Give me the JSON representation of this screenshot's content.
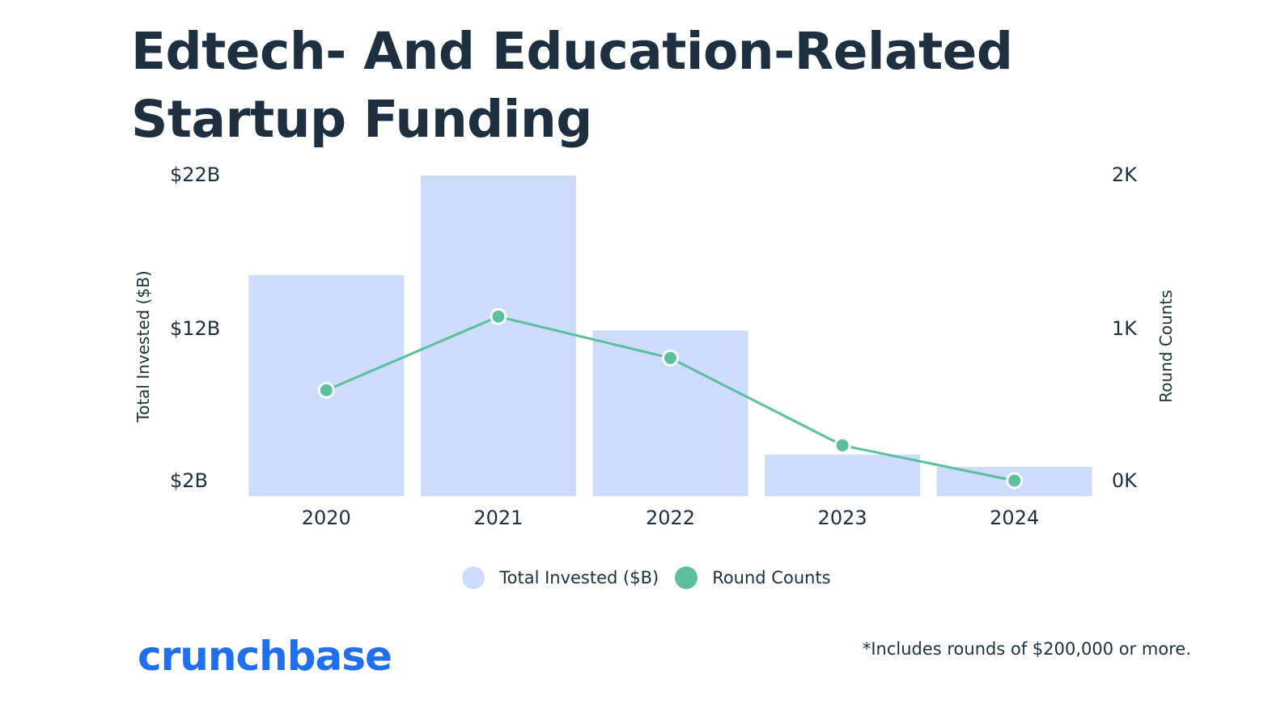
{
  "colors": {
    "bar": "#cddcfa",
    "line": "#5bbfa0",
    "text": "#1e3040",
    "logo": "#1f6ff1"
  },
  "chart_data": {
    "type": "bar",
    "title": "Edtech- And Education-Related Startup Funding",
    "categories": [
      "2020",
      "2021",
      "2022",
      "2023",
      "2024"
    ],
    "series": [
      {
        "name": "Total Invested ($B)",
        "type": "bar",
        "axis": "left",
        "values": [
          15.4,
          21.9,
          11.8,
          3.7,
          2.9
        ]
      },
      {
        "name": "Round Counts",
        "type": "line",
        "axis": "right",
        "values": [
          590,
          1070,
          800,
          230,
          0
        ]
      }
    ],
    "ylabel": "Total Invested ($B)",
    "y2label": "Round Counts",
    "ylim": [
      2,
      22
    ],
    "y2lim": [
      0,
      2000
    ],
    "yticks": [
      "$22B",
      "$12B",
      "$2B"
    ],
    "y2ticks": [
      "2K",
      "1K",
      "0K"
    ],
    "grid": false,
    "legend": "bottom-center"
  },
  "brand": {
    "logo_text": "crunchbase"
  },
  "footnote": "*Includes rounds of $200,000 or more."
}
